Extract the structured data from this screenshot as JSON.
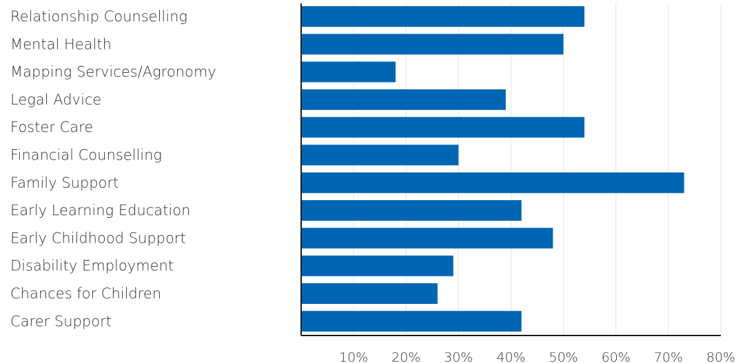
{
  "chart_data": {
    "type": "bar",
    "orientation": "horizontal",
    "categories": [
      "Relationship Counselling",
      "Mental Health",
      "Mapping Services/Agronomy",
      "Legal Advice",
      "Foster Care",
      "Financial Counselling",
      "Family Support",
      "Early Learning Education",
      "Early Childhood Support",
      "Disability Employment",
      "Chances for Children",
      "Carer Support"
    ],
    "values": [
      54,
      50,
      18,
      39,
      54,
      30,
      73,
      42,
      48,
      29,
      26,
      42
    ],
    "unit": "%",
    "xlim": [
      0,
      80
    ],
    "ticks": [
      10,
      20,
      30,
      40,
      50,
      60,
      70,
      80
    ],
    "tick_labels": [
      "10%",
      "20%",
      "30%",
      "40%",
      "50%",
      "60%",
      "70%",
      "80%"
    ],
    "bar_color": "#0066b3",
    "grid": true,
    "legend": "none",
    "title": "",
    "xlabel": "",
    "ylabel": ""
  }
}
